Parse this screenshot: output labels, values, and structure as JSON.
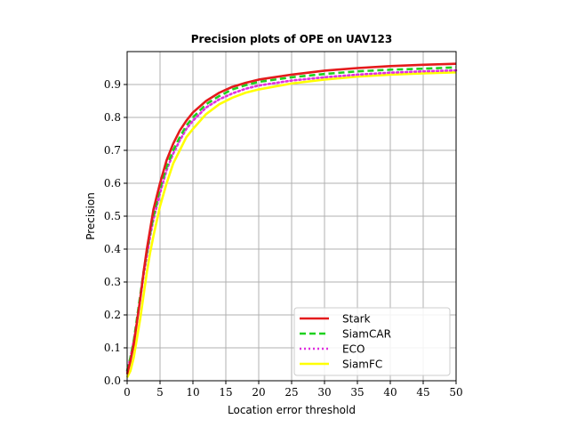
{
  "chart_data": {
    "type": "line",
    "title": "Precision plots of OPE on UAV123",
    "xlabel": "Location error threshold",
    "ylabel": "Precision",
    "xlim": [
      0,
      50
    ],
    "ylim": [
      0,
      1.0
    ],
    "xticks": [
      0,
      5,
      10,
      15,
      20,
      25,
      30,
      35,
      40,
      45,
      50
    ],
    "yticks": [
      0.0,
      0.1,
      0.2,
      0.3,
      0.4,
      0.5,
      0.6,
      0.7,
      0.8,
      0.9
    ],
    "xtick_labels": [
      "0",
      "5",
      "10",
      "15",
      "20",
      "25",
      "30",
      "35",
      "40",
      "45",
      "50"
    ],
    "ytick_labels": [
      "0.0",
      "0.1",
      "0.2",
      "0.3",
      "0.4",
      "0.5",
      "0.6",
      "0.7",
      "0.8",
      "0.9"
    ],
    "grid": true,
    "legend_position": "bottom-right",
    "x": [
      0,
      0.5,
      1,
      1.5,
      2,
      2.5,
      3,
      3.5,
      4,
      5,
      6,
      7,
      8,
      9,
      10,
      12,
      14,
      16,
      18,
      20,
      25,
      30,
      35,
      40,
      45,
      50
    ],
    "series": [
      {
        "name": "Stark",
        "color": "#e41a1c",
        "dash": "solid",
        "values": [
          0.02,
          0.06,
          0.11,
          0.18,
          0.25,
          0.33,
          0.4,
          0.46,
          0.52,
          0.6,
          0.67,
          0.72,
          0.76,
          0.79,
          0.815,
          0.85,
          0.875,
          0.893,
          0.905,
          0.915,
          0.93,
          0.942,
          0.95,
          0.956,
          0.96,
          0.963
        ]
      },
      {
        "name": "SiamCAR",
        "color": "#1fd11f",
        "dash": "dashed",
        "values": [
          0.03,
          0.07,
          0.12,
          0.19,
          0.26,
          0.33,
          0.39,
          0.45,
          0.5,
          0.585,
          0.65,
          0.7,
          0.74,
          0.775,
          0.8,
          0.84,
          0.865,
          0.885,
          0.898,
          0.908,
          0.922,
          0.932,
          0.94,
          0.945,
          0.948,
          0.952
        ]
      },
      {
        "name": "ECO",
        "color": "#e02ee0",
        "dash": "dotted",
        "values": [
          0.03,
          0.07,
          0.12,
          0.18,
          0.25,
          0.32,
          0.38,
          0.44,
          0.49,
          0.57,
          0.64,
          0.69,
          0.73,
          0.765,
          0.79,
          0.83,
          0.855,
          0.873,
          0.887,
          0.897,
          0.912,
          0.922,
          0.93,
          0.936,
          0.94,
          0.943
        ]
      },
      {
        "name": "SiamFC",
        "color": "#ffff00",
        "dash": "solid",
        "values": [
          0.01,
          0.03,
          0.07,
          0.13,
          0.19,
          0.26,
          0.33,
          0.39,
          0.44,
          0.53,
          0.6,
          0.66,
          0.7,
          0.74,
          0.765,
          0.81,
          0.84,
          0.86,
          0.875,
          0.885,
          0.903,
          0.915,
          0.924,
          0.93,
          0.934,
          0.937
        ]
      }
    ]
  }
}
